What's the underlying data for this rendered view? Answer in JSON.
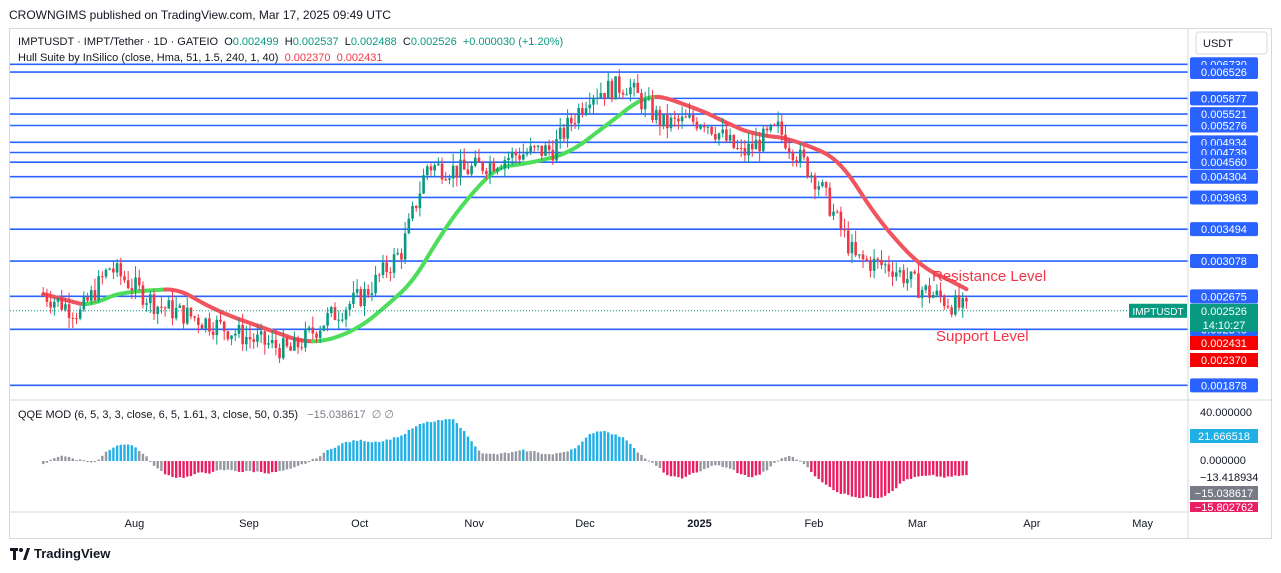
{
  "header": {
    "published": "CROWNGIMS published on TradingView.com, Mar 17, 2025 09:49 UTC"
  },
  "legend": {
    "symbol": "IMPTUSDT · IMPT/Tether · 1D · GATEIO",
    "o_label": "O",
    "o": "0.002499",
    "h_label": "H",
    "h": "0.002537",
    "l_label": "L",
    "l": "0.002488",
    "c_label": "C",
    "c": "0.002526",
    "change": "+0.000030 (+1.20%)",
    "hull_label": "Hull Suite by InSilico (close, Hma, 51, 1.5, 240, 1, 40)",
    "hull_v1": "0.002370",
    "hull_v2": "0.002431"
  },
  "qqe": {
    "label": "QQE MOD (6, 5, 3, 3, close, 6, 5, 1.61, 3, close, 50, 0.35)",
    "value": "−15.038617",
    "sym": "∅ ∅"
  },
  "currency": "USDT",
  "annotations": {
    "resistance": "Resistance Level",
    "support": "Support Level"
  },
  "footer_logo": "TradingView",
  "colors": {
    "level_line": "#2962ff",
    "up_candle": "#089981",
    "down_candle": "#f23645",
    "hull_up": "#4cde5a",
    "hull_down": "#f0555f",
    "annotation": "#f23645",
    "hist_up": "#1fb0e6",
    "hist_down": "#e91e63",
    "hist_neutral": "#9598a1"
  },
  "chart_data": {
    "type": "candlestick",
    "title": "",
    "xlabel": "",
    "ylabel": "",
    "y_scale": "log",
    "ylim": [
      0.0018,
      0.0069
    ],
    "x_ticks": [
      "Aug",
      "Sep",
      "Oct",
      "Nov",
      "Dec",
      "2025",
      "Feb",
      "Mar",
      "Apr",
      "May"
    ],
    "price_levels": [
      0.00673,
      0.006526,
      0.005877,
      0.005521,
      0.005276,
      0.004934,
      0.004739,
      0.00456,
      0.004304,
      0.003963,
      0.003494,
      0.003078,
      0.002675,
      0.002346,
      0.001878
    ],
    "axis_labels": [
      "0.006730",
      "0.006526",
      "0.005877",
      "0.005521",
      "0.005276",
      "0.004934",
      "0.004739",
      "0.004560",
      "0.004304",
      "0.003963",
      "0.003494",
      "0.003078",
      "0.002675",
      "0.002346",
      "0.001878"
    ],
    "last_price": {
      "symbol": "IMPTUSDT",
      "value": "0.002526",
      "countdown": "14:10:27"
    },
    "hull_tags": [
      "0.002431",
      "0.002370"
    ],
    "close_series_approx": [
      {
        "date": "2024-07-10",
        "close": 0.0027
      },
      {
        "date": "2024-07-20",
        "close": 0.0025
      },
      {
        "date": "2024-07-28",
        "close": 0.003
      },
      {
        "date": "2024-08-10",
        "close": 0.00258
      },
      {
        "date": "2024-08-25",
        "close": 0.0024
      },
      {
        "date": "2024-09-05",
        "close": 0.00225
      },
      {
        "date": "2024-09-15",
        "close": 0.00215
      },
      {
        "date": "2024-09-25",
        "close": 0.00245
      },
      {
        "date": "2024-10-05",
        "close": 0.0027
      },
      {
        "date": "2024-10-15",
        "close": 0.0032
      },
      {
        "date": "2024-10-22",
        "close": 0.0045
      },
      {
        "date": "2024-11-01",
        "close": 0.0044
      },
      {
        "date": "2024-11-15",
        "close": 0.0047
      },
      {
        "date": "2024-11-25",
        "close": 0.0048
      },
      {
        "date": "2024-12-05",
        "close": 0.006
      },
      {
        "date": "2024-12-15",
        "close": 0.0062
      },
      {
        "date": "2024-12-25",
        "close": 0.0053
      },
      {
        "date": "2025-01-05",
        "close": 0.0054
      },
      {
        "date": "2025-01-15",
        "close": 0.0047
      },
      {
        "date": "2025-01-25",
        "close": 0.0052
      },
      {
        "date": "2025-02-05",
        "close": 0.0042
      },
      {
        "date": "2025-02-15",
        "close": 0.0031
      },
      {
        "date": "2025-02-25",
        "close": 0.003
      },
      {
        "date": "2025-03-05",
        "close": 0.00275
      },
      {
        "date": "2025-03-17",
        "close": 0.002526
      }
    ],
    "qqe_axis_labels": [
      "40.000000",
      "0.000000"
    ],
    "qqe_tags": [
      "21.666518",
      "−13.418934",
      "−15.038617",
      "−15.802762"
    ]
  }
}
